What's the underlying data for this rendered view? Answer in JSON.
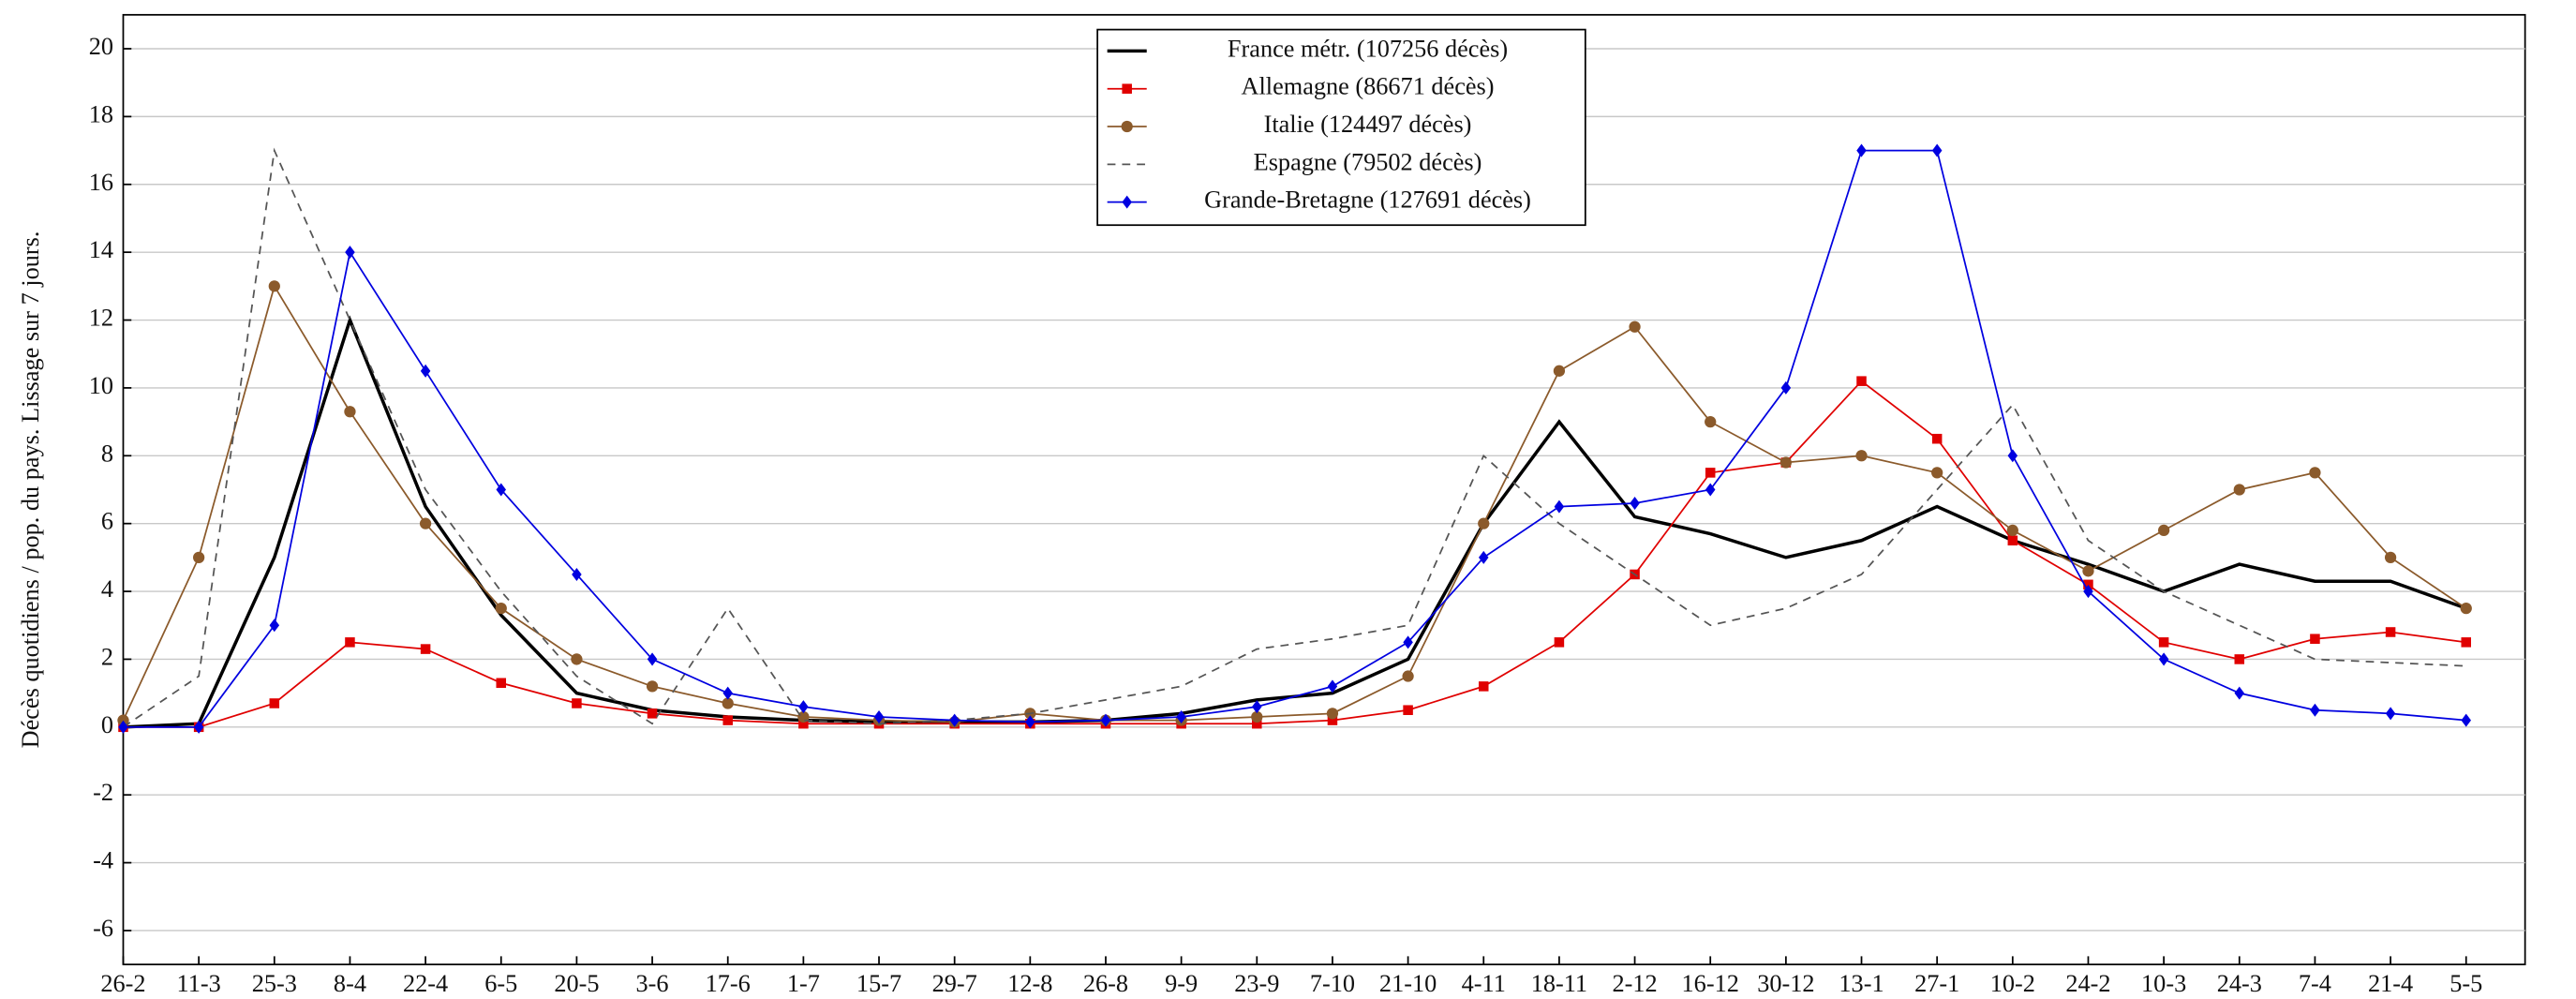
{
  "chart_data": {
    "type": "line",
    "y_label": "Décès quotidiens / pop. du pays. Lissage sur 7 jours.",
    "categories": [
      "26-2",
      "11-3",
      "25-3",
      "8-4",
      "22-4",
      "6-5",
      "20-5",
      "3-6",
      "17-6",
      "1-7",
      "15-7",
      "29-7",
      "12-8",
      "26-8",
      "9-9",
      "23-9",
      "7-10",
      "21-10",
      "4-11",
      "18-11",
      "2-12",
      "16-12",
      "30-12",
      "13-1",
      "27-1",
      "10-2",
      "24-2",
      "10-3",
      "24-3",
      "7-4",
      "21-4",
      "5-5"
    ],
    "series": [
      {
        "name": "France métr. (107256 décès)",
        "color": "#000000",
        "marker": "none",
        "dash": false,
        "values": [
          0,
          0.1,
          5,
          12,
          6.5,
          3.3,
          1,
          0.5,
          0.3,
          0.2,
          0.15,
          0.15,
          0.15,
          0.2,
          0.4,
          0.8,
          1,
          2,
          6,
          9,
          6.2,
          5.7,
          5,
          5.5,
          6.5,
          5.5,
          4.8,
          4,
          4.8,
          4.3,
          4.3,
          3.5
        ]
      },
      {
        "name": "Allemagne (86671 décès)",
        "color": "#e00000",
        "marker": "square",
        "dash": false,
        "values": [
          0,
          0,
          0.7,
          2.5,
          2.3,
          1.3,
          0.7,
          0.4,
          0.2,
          0.1,
          0.1,
          0.1,
          0.1,
          0.1,
          0.1,
          0.1,
          0.2,
          0.5,
          1.2,
          2.5,
          4.5,
          7.5,
          7.8,
          10.2,
          8.5,
          5.5,
          4.2,
          2.5,
          2,
          2.6,
          2.8,
          2.5
        ]
      },
      {
        "name": "Italie (124497 décès)",
        "color": "#8b5a2b",
        "marker": "circle",
        "dash": false,
        "values": [
          0.2,
          5,
          13,
          9.3,
          6,
          3.5,
          2,
          1.2,
          0.7,
          0.3,
          0.2,
          0.15,
          0.4,
          0.2,
          0.2,
          0.3,
          0.4,
          1.5,
          6,
          10.5,
          11.8,
          9,
          7.8,
          8,
          7.5,
          5.8,
          4.6,
          5.8,
          7,
          7.5,
          5,
          3.5
        ]
      },
      {
        "name": "Espagne (79502 décès)",
        "color": "#555555",
        "marker": "none",
        "dash": true,
        "values": [
          0,
          1.5,
          17,
          12,
          7,
          4,
          1.5,
          0.1,
          3.5,
          0.2,
          0.1,
          0.2,
          0.4,
          0.8,
          1.2,
          2.3,
          2.6,
          3,
          8,
          6,
          4.5,
          3,
          3.5,
          4.5,
          7,
          9.5,
          5.5,
          4,
          3,
          2,
          1.9,
          1.8
        ]
      },
      {
        "name": "Grande-Bretagne (127691 décès)",
        "color": "#0000e0",
        "marker": "diamond",
        "dash": false,
        "values": [
          0,
          0,
          3,
          14,
          10.5,
          7,
          4.5,
          2,
          1,
          0.6,
          0.3,
          0.2,
          0.15,
          0.2,
          0.3,
          0.6,
          1.2,
          2.5,
          5,
          6.5,
          6.6,
          7,
          10,
          17,
          17,
          8,
          4,
          2,
          1,
          0.5,
          0.4,
          0.2
        ]
      }
    ],
    "ylim": [
      -7,
      21
    ],
    "yticks": [
      -6,
      -4,
      -2,
      0,
      2,
      4,
      6,
      8,
      10,
      12,
      14,
      16,
      18,
      20
    ],
    "grid": true
  }
}
